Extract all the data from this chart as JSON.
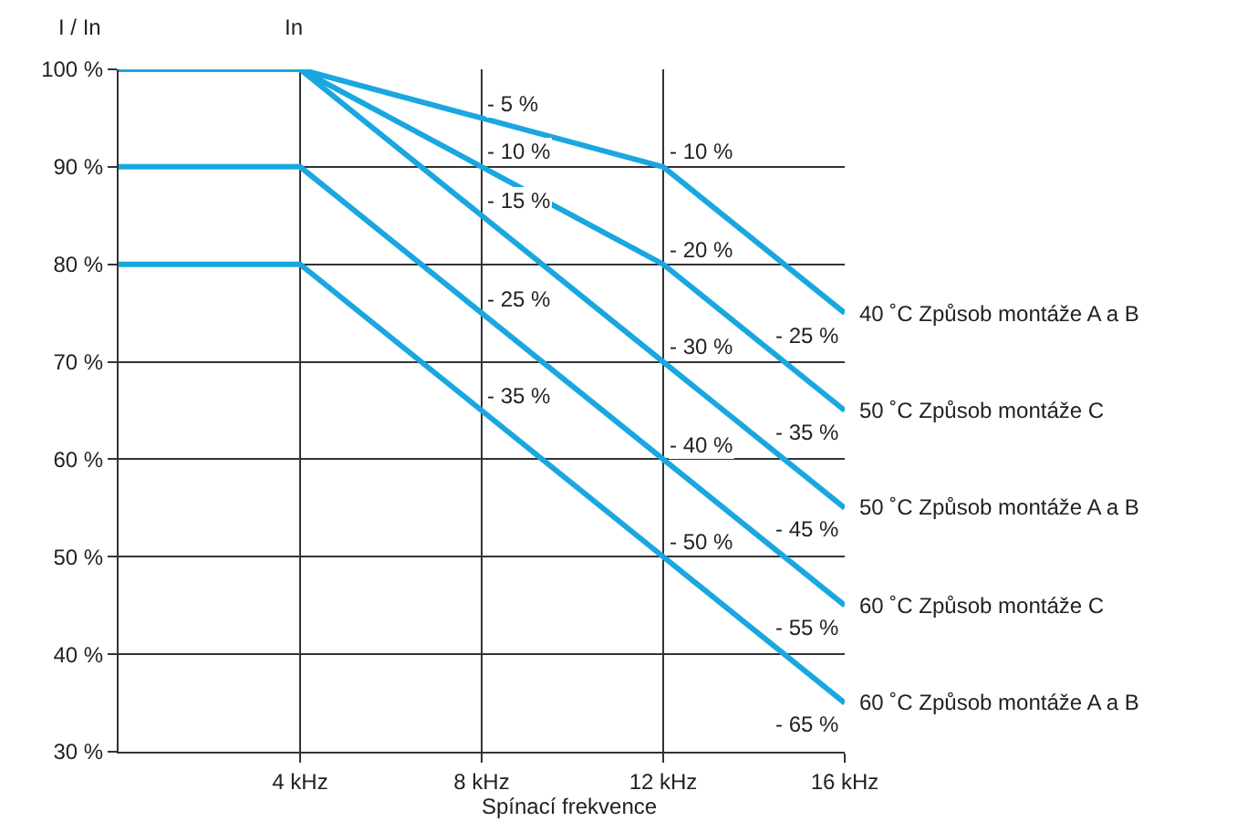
{
  "chart_data": {
    "type": "line",
    "xlabel": "Spínací frekvence",
    "ylabel": "I / In",
    "x": [
      0,
      4,
      8,
      12,
      16
    ],
    "series": [
      {
        "name": "40 ˚C Způsob montáže A a B",
        "color": "#1aa7e0",
        "values": [
          100,
          100,
          95,
          90,
          75
        ]
      },
      {
        "name": "50 ˚C Způsob montáže C",
        "color": "#1aa7e0",
        "values": [
          100,
          100,
          90,
          80,
          65
        ]
      },
      {
        "name": "50 ˚C Způsob montáže A a B",
        "color": "#1aa7e0",
        "values": [
          100,
          100,
          85,
          70,
          55
        ]
      },
      {
        "name": "60 ˚C Způsob montáže C",
        "color": "#1aa7e0",
        "values": [
          90,
          90,
          75,
          60,
          45
        ]
      },
      {
        "name": "60 ˚C Způsob montáže A a B",
        "color": "#1aa7e0",
        "values": [
          80,
          80,
          65,
          50,
          35
        ]
      }
    ],
    "xlim": [
      0,
      16
    ],
    "ylim": [
      30,
      100
    ],
    "xticks": [
      {
        "value": 4,
        "label": "4 kHz"
      },
      {
        "value": 8,
        "label": "8 kHz"
      },
      {
        "value": 12,
        "label": "12 kHz"
      },
      {
        "value": 16,
        "label": "16 kHz"
      }
    ],
    "yticks": [
      {
        "value": 30,
        "label": "30 %"
      },
      {
        "value": 40,
        "label": "40 %"
      },
      {
        "value": 50,
        "label": "50 %"
      },
      {
        "value": 60,
        "label": "60 %"
      },
      {
        "value": 70,
        "label": "70 %"
      },
      {
        "value": 80,
        "label": "80 %"
      },
      {
        "value": 90,
        "label": "90 %"
      },
      {
        "value": 100,
        "label": "100 %"
      }
    ],
    "grid": true,
    "legend": false,
    "marker": "none",
    "line_style": "solid",
    "annotations": [
      {
        "text": "In",
        "x": 4,
        "y": 100
      },
      {
        "text": "- 5 %",
        "x": 8,
        "y": 95
      },
      {
        "text": "- 10 %",
        "x": 8,
        "y": 90
      },
      {
        "text": "- 15 %",
        "x": 8,
        "y": 85
      },
      {
        "text": "- 25 %",
        "x": 8,
        "y": 75
      },
      {
        "text": "- 35 %",
        "x": 8,
        "y": 65
      },
      {
        "text": "- 10 %",
        "x": 12,
        "y": 90
      },
      {
        "text": "- 20 %",
        "x": 12,
        "y": 80
      },
      {
        "text": "- 30 %",
        "x": 12,
        "y": 70
      },
      {
        "text": "- 40 %",
        "x": 12,
        "y": 60
      },
      {
        "text": "- 50 %",
        "x": 12,
        "y": 50
      },
      {
        "text": "- 25 %",
        "x": 16,
        "y": 75
      },
      {
        "text": "- 35 %",
        "x": 16,
        "y": 65
      },
      {
        "text": "- 45 %",
        "x": 16,
        "y": 55
      },
      {
        "text": "- 55 %",
        "x": 16,
        "y": 45
      },
      {
        "text": "- 65 %",
        "x": 16,
        "y": 35
      }
    ]
  }
}
